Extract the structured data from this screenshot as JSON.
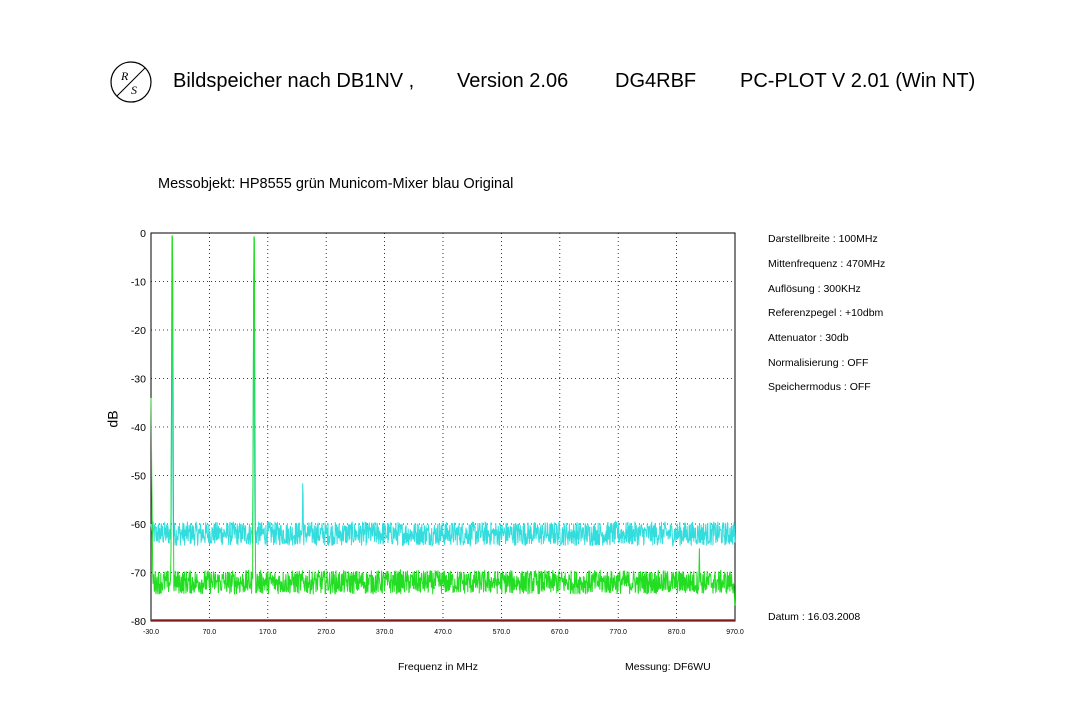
{
  "header": {
    "title_parts": [
      "Bildspeicher nach DB1NV ,",
      "Version 2.06",
      "DG4RBF",
      "PC-PLOT  V 2.01  (Win NT)"
    ],
    "logo_text": "R&S"
  },
  "info": {
    "lines": [
      "Darstellbreite : 100MHz",
      "Mittenfrequenz  : 470MHz",
      "Auflösung  :   300KHz",
      "Referenzpegel : +10dbm",
      "Attenuator : 30db",
      "Normalisierung : OFF",
      "Speichermodus : OFF"
    ],
    "datum": "Datum :  16.03.2008",
    "messung": "Messung:  DF6WU"
  },
  "chart_data": {
    "type": "line",
    "title": "Messobjekt: HP8555 grün Municom-Mixer blau Original",
    "xlabel": "Frequenz in MHz",
    "ylabel": "dB",
    "xlim": [
      -30,
      970
    ],
    "ylim": [
      -80,
      0
    ],
    "xticks": [
      "-30.0",
      "70.0",
      "170.0",
      "270.0",
      "370.0",
      "470.0",
      "570.0",
      "670.0",
      "770.0",
      "870.0",
      "970.0"
    ],
    "yticks": [
      "0",
      "-10",
      "-20",
      "-30",
      "-40",
      "-50",
      "-60",
      "-70",
      "-80"
    ],
    "grid": true,
    "colors": {
      "green": "#22dd22",
      "cyan": "#33dddd",
      "baseline": "#aa2222"
    },
    "series": [
      {
        "color": "green",
        "noise_floor": -72,
        "points": [
          [
            -30,
            -34
          ],
          [
            -27,
            -72
          ],
          [
            4,
            -72
          ],
          [
            5,
            -40
          ],
          [
            6,
            -0.5
          ],
          [
            7,
            -1
          ],
          [
            8,
            -40
          ],
          [
            9,
            -72
          ],
          [
            144,
            -72
          ],
          [
            145,
            -40
          ],
          [
            146,
            -0.5
          ],
          [
            147,
            -1
          ],
          [
            148,
            -40
          ],
          [
            149,
            -72
          ],
          [
            908,
            -72
          ],
          [
            909,
            -65
          ],
          [
            910,
            -72
          ],
          [
            968,
            -72
          ],
          [
            970,
            -78
          ]
        ]
      },
      {
        "color": "cyan",
        "noise_floor": -62,
        "points": [
          [
            -30,
            -60
          ],
          [
            -28,
            -62
          ],
          [
            4,
            -62
          ],
          [
            5,
            -40
          ],
          [
            6,
            -1
          ],
          [
            7,
            -40
          ],
          [
            8,
            -62
          ],
          [
            144,
            -62
          ],
          [
            145,
            -40
          ],
          [
            146,
            -1
          ],
          [
            147,
            -40
          ],
          [
            148,
            -62
          ],
          [
            229,
            -62
          ],
          [
            230,
            -49
          ],
          [
            231,
            -62
          ],
          [
            970,
            -62
          ]
        ]
      }
    ]
  }
}
